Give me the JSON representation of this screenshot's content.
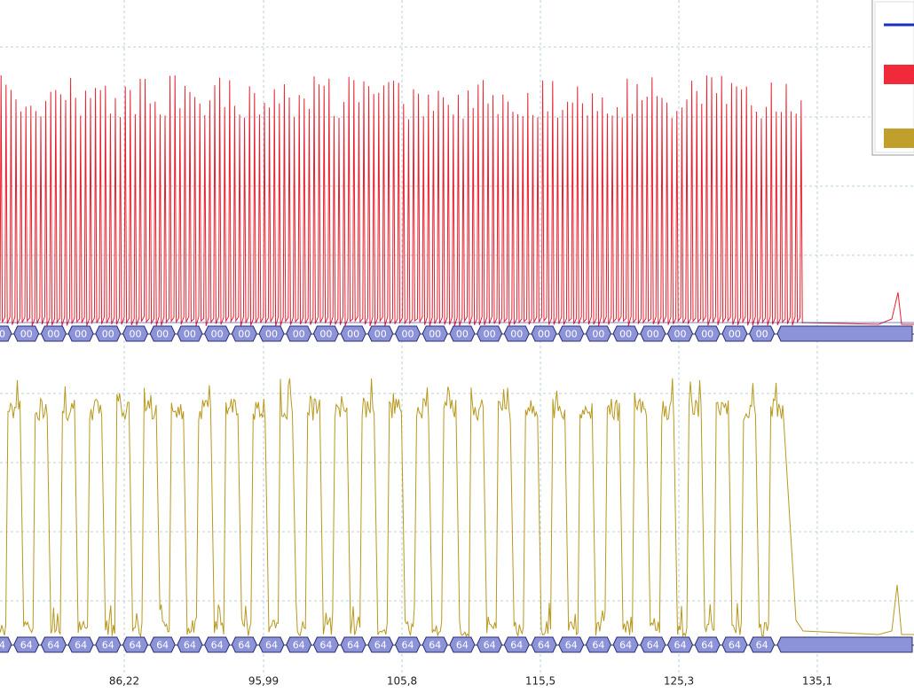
{
  "x_axis": {
    "labels": [
      "86,22",
      "95,99",
      "105,8",
      "115,5",
      "125,3",
      "135,1"
    ]
  },
  "bus_1": {
    "cells": [
      "00",
      "00",
      "00",
      "00",
      "00",
      "00",
      "00",
      "00",
      "00",
      "00",
      "00",
      "00",
      "00",
      "00",
      "00",
      "00",
      "00",
      "00",
      "00",
      "00",
      "00",
      "00",
      "00",
      "00",
      "00",
      "00",
      "00",
      "00",
      "00"
    ]
  },
  "bus_2": {
    "cells": [
      "64",
      "64",
      "64",
      "64",
      "64",
      "64",
      "64",
      "64",
      "64",
      "64",
      "64",
      "64",
      "64",
      "64",
      "64",
      "64",
      "64",
      "64",
      "64",
      "64",
      "64",
      "64",
      "64",
      "64",
      "64",
      "64",
      "64",
      "64",
      "64"
    ]
  }
}
